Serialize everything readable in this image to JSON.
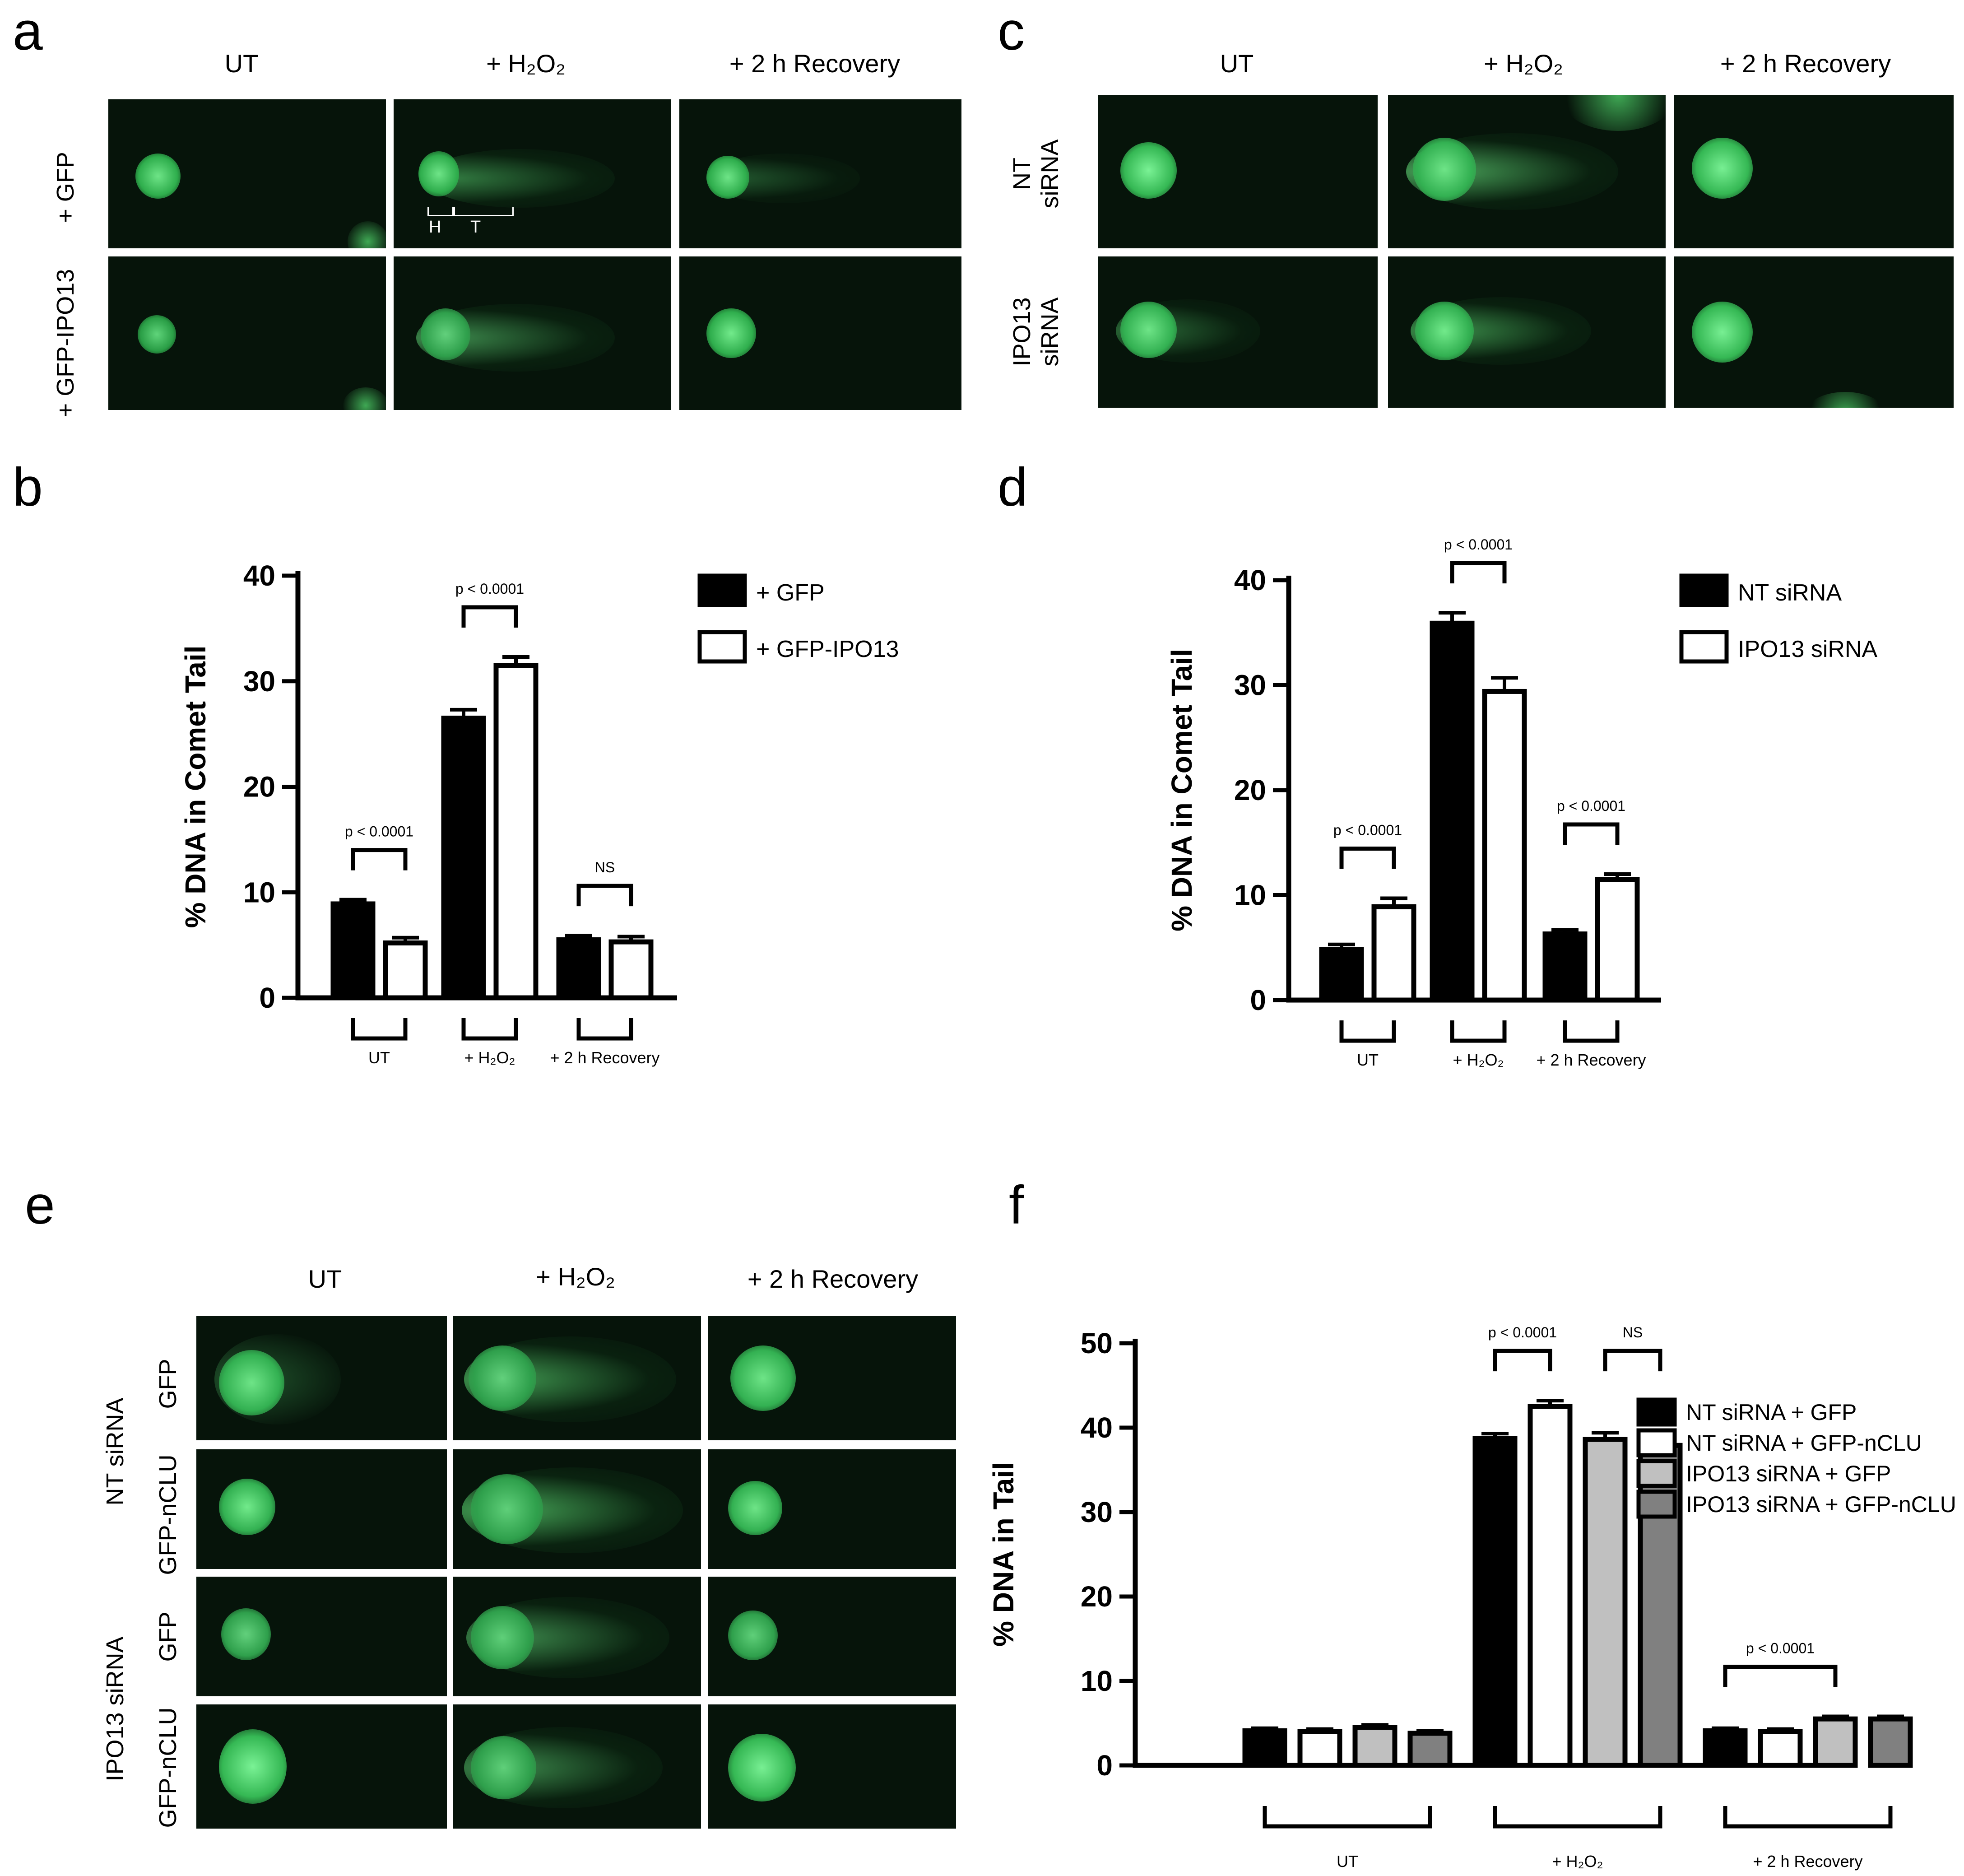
{
  "panels": {
    "a": {
      "letter": "a",
      "columns": [
        "UT",
        "+ H₂O₂",
        "+ 2 h Recovery"
      ],
      "rows": [
        "+ GFP",
        "+ GFP-IPO13"
      ],
      "annotation": {
        "head": "H",
        "tail": "T"
      }
    },
    "c": {
      "letter": "c",
      "columns": [
        "UT",
        "+ H₂O₂",
        "+ 2 h Recovery"
      ],
      "rows": [
        "NT\nsiRNA",
        "IPO13\nsiRNA"
      ]
    },
    "e": {
      "letter": "e",
      "columns": [
        "UT",
        "+ H₂O₂",
        "+ 2 h Recovery"
      ],
      "groups": [
        "NT siRNA",
        "IPO13 siRNA"
      ],
      "rows": [
        "GFP",
        "GFP-nCLU",
        "GFP",
        "GFP-nCLU"
      ]
    },
    "b": {
      "letter": "b"
    },
    "d": {
      "letter": "d"
    },
    "f": {
      "letter": "f"
    }
  },
  "chart_data": [
    {
      "id": "b",
      "type": "bar",
      "ylabel": "% DNA in Comet Tail",
      "ylim": [
        0,
        40
      ],
      "yticks": [
        0,
        10,
        20,
        30,
        40
      ],
      "categories": [
        "UT",
        "+ H₂O₂",
        "+ 2 h Recovery"
      ],
      "series": [
        {
          "name": "+ GFP",
          "color": "#000000",
          "values": [
            8.9,
            26.5,
            5.5
          ],
          "errors": [
            0.4,
            0.8,
            0.4
          ]
        },
        {
          "name": "+ GFP-IPO13",
          "color": "#ffffff",
          "values": [
            5.2,
            31.5,
            5.3
          ],
          "errors": [
            0.5,
            0.8,
            0.5
          ]
        }
      ],
      "comparisons": [
        {
          "category": 0,
          "label": "p < 0.0001"
        },
        {
          "category": 1,
          "label": "p < 0.0001"
        },
        {
          "category": 2,
          "label": "NS"
        }
      ],
      "legend": "right"
    },
    {
      "id": "d",
      "type": "bar",
      "ylabel": "% DNA in Comet Tail",
      "ylim": [
        0,
        40
      ],
      "yticks": [
        0,
        10,
        20,
        30,
        40
      ],
      "categories": [
        "UT",
        "+ H₂O₂",
        "+ 2 h Recovery"
      ],
      "series": [
        {
          "name": "NT siRNA",
          "color": "#000000",
          "values": [
            4.8,
            35.9,
            6.3
          ],
          "errors": [
            0.5,
            1.0,
            0.4
          ]
        },
        {
          "name": "IPO13 siRNA",
          "color": "#ffffff",
          "values": [
            8.9,
            29.4,
            11.5
          ],
          "errors": [
            0.8,
            1.3,
            0.5
          ]
        }
      ],
      "comparisons": [
        {
          "category": 0,
          "label": "p < 0.0001"
        },
        {
          "category": 1,
          "label": "p < 0.0001"
        },
        {
          "category": 2,
          "label": "p < 0.0001"
        }
      ],
      "legend": "right"
    },
    {
      "id": "f",
      "type": "bar",
      "ylabel": "% DNA in Tail",
      "ylim": [
        0,
        50
      ],
      "yticks": [
        0,
        10,
        20,
        30,
        40,
        50
      ],
      "categories": [
        "UT",
        "+ H₂O₂",
        "+ 2 h Recovery"
      ],
      "series": [
        {
          "name": "NT siRNA + GFP",
          "color": "#000000",
          "values": [
            4.1,
            38.7,
            4.1
          ],
          "errors": [
            0.3,
            0.6,
            0.3
          ]
        },
        {
          "name": "NT siRNA + GFP-nCLU",
          "color": "#ffffff",
          "values": [
            4.0,
            42.5,
            4.0
          ],
          "errors": [
            0.3,
            0.7,
            0.3
          ]
        },
        {
          "name": "IPO13 siRNA + GFP",
          "color": "#c0c0c0",
          "values": [
            4.5,
            38.6,
            5.5
          ],
          "errors": [
            0.3,
            0.8,
            0.3
          ]
        },
        {
          "name": "IPO13 siRNA + GFP-nCLU",
          "color": "#808080",
          "values": [
            3.8,
            37.9,
            5.5
          ],
          "errors": [
            0.3,
            0.8,
            0.3
          ]
        }
      ],
      "comparisons": [
        {
          "category": 1,
          "from": 0,
          "to": 1,
          "label": "p < 0.0001"
        },
        {
          "category": 1,
          "from": 2,
          "to": 3,
          "label": "NS"
        },
        {
          "category": 2,
          "from": 0,
          "to": 2,
          "label": "p < 0.0001"
        }
      ],
      "legend": "right"
    }
  ]
}
